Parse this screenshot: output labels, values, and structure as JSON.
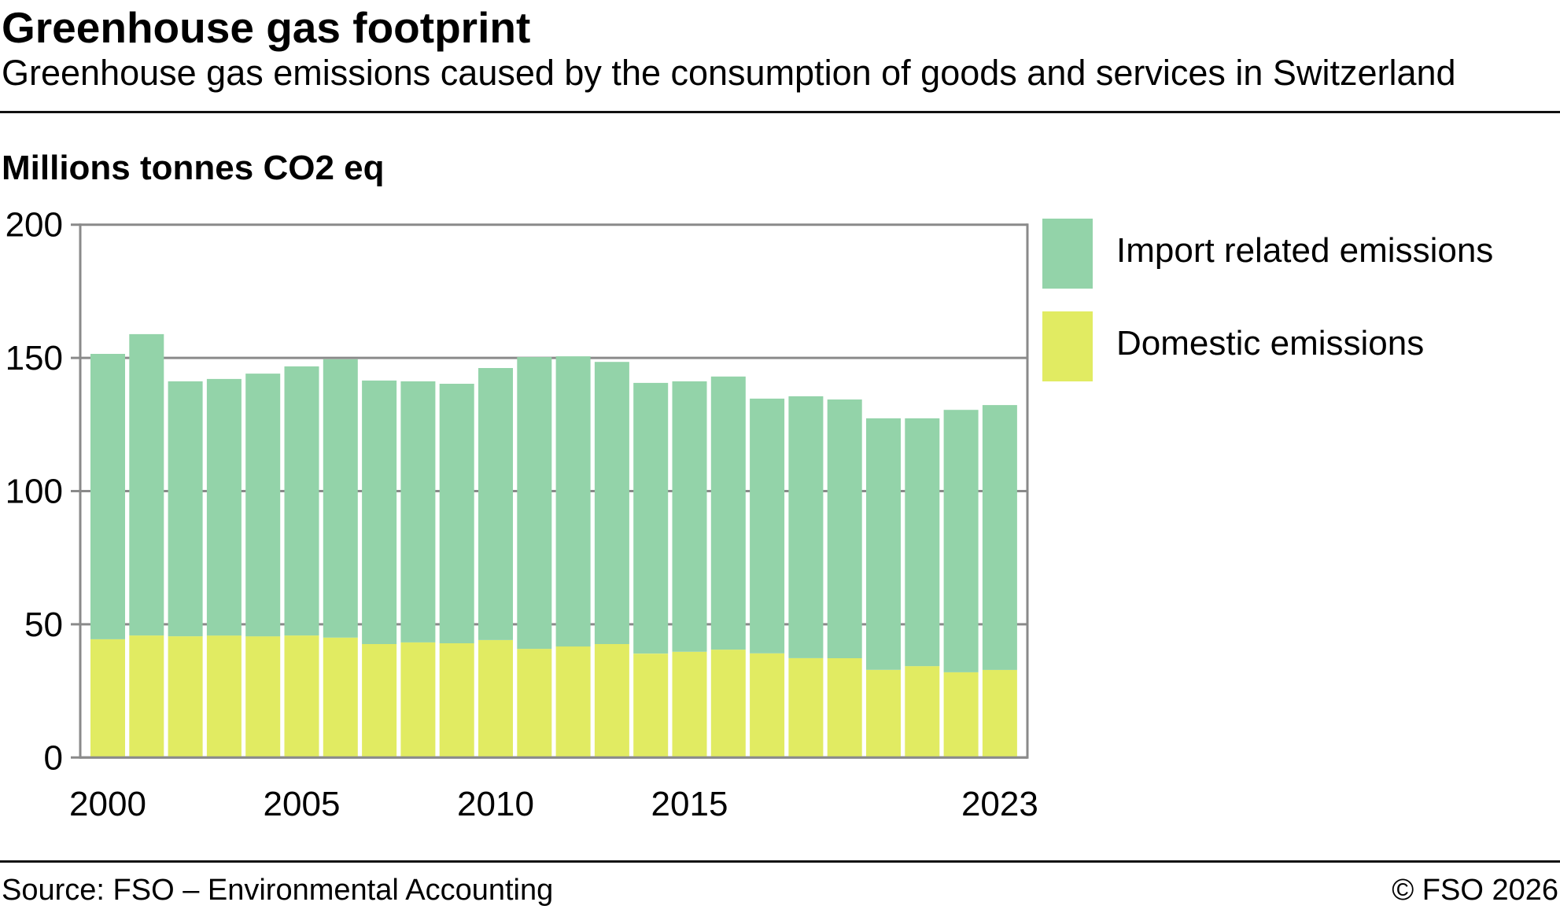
{
  "header": {
    "title": "Greenhouse gas footprint",
    "subtitle": "Greenhouse gas emissions caused by the consumption of goods and services in Switzerland"
  },
  "footer": {
    "source": "Source: FSO – Environmental Accounting",
    "copyright": "© FSO 2026"
  },
  "colors": {
    "import": "#93D3A9",
    "domestic": "#E1EB62",
    "grid": "#8a8a8a"
  },
  "chart_data": {
    "type": "bar",
    "stacked": true,
    "title": "Greenhouse gas footprint",
    "subtitle": "Greenhouse gas emissions caused by the consumption of goods and services in Switzerland",
    "xlabel": "",
    "ylabel": "Millions tonnes CO2 eq",
    "ylim": [
      0,
      200
    ],
    "yticks": [
      0,
      50,
      100,
      150,
      200
    ],
    "ytick_labels": [
      "0",
      "50",
      "100",
      "150",
      "200"
    ],
    "grid": true,
    "legend_position": "top-right (outside plot)",
    "categories": [
      "2000",
      "2001",
      "2002",
      "2003",
      "2004",
      "2005",
      "2006",
      "2007",
      "2008",
      "2009",
      "2010",
      "2011",
      "2012",
      "2013",
      "2014",
      "2015",
      "2016",
      "2017",
      "2018",
      "2019",
      "2020",
      "2021",
      "2022",
      "2023"
    ],
    "xtick_labels": [
      "2000",
      "2005",
      "2010",
      "2015",
      "2023"
    ],
    "series": [
      {
        "name": "Domestic emissions",
        "color": "#E1EB62",
        "values": [
          44.4,
          45.8,
          45.5,
          45.8,
          45.5,
          45.8,
          45.0,
          42.6,
          43.2,
          42.9,
          44.1,
          40.8,
          41.7,
          42.6,
          39.0,
          39.7,
          40.5,
          39.1,
          37.3,
          37.3,
          32.9,
          34.3,
          32.0,
          32.9
        ]
      },
      {
        "name": "Import related emissions",
        "color": "#93D3A9",
        "values": [
          107.1,
          113.1,
          95.7,
          96.3,
          98.6,
          101.0,
          104.5,
          98.9,
          98.0,
          97.4,
          102.1,
          109.5,
          108.9,
          105.9,
          101.6,
          101.5,
          102.5,
          95.6,
          98.3,
          97.1,
          94.4,
          93.0,
          98.5,
          99.4
        ]
      }
    ],
    "totals": [
      151.5,
      158.9,
      141.2,
      142.1,
      144.1,
      146.8,
      149.5,
      141.5,
      141.2,
      140.3,
      146.2,
      150.3,
      150.6,
      148.5,
      140.6,
      141.2,
      143.0,
      134.7,
      135.6,
      134.4,
      127.3,
      127.3,
      130.5,
      132.3
    ]
  },
  "legend": [
    {
      "label": "Import related emissions",
      "color": "#93D3A9"
    },
    {
      "label": "Domestic emissions",
      "color": "#E1EB62"
    }
  ]
}
